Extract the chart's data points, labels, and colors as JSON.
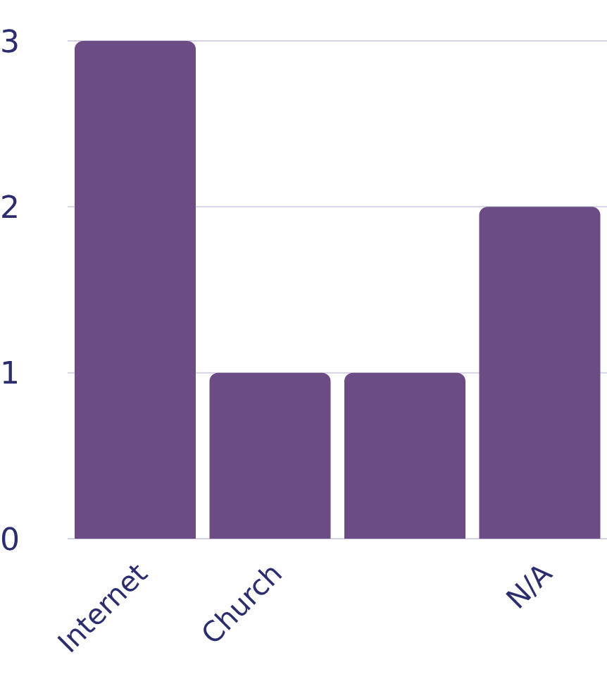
{
  "chart_data": {
    "type": "bar",
    "categories": [
      "Internet",
      "Church",
      null,
      "N/A"
    ],
    "values": [
      3,
      1,
      1,
      2
    ],
    "color": "#6b4c85",
    "ylim": [
      0,
      3
    ],
    "yticks": [
      0,
      1,
      2,
      3
    ],
    "grid": "y"
  }
}
